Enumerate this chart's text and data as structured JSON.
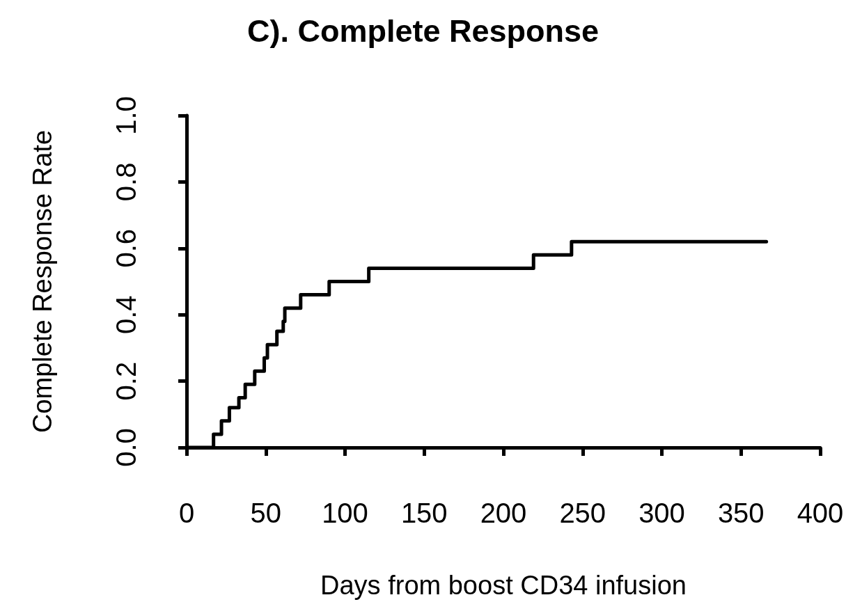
{
  "chart_data": {
    "type": "step",
    "title": "C). Complete Response",
    "xlabel": "Days from boost CD34 infusion",
    "ylabel": "Complete Response Rate",
    "x": [
      0,
      17,
      22,
      27,
      33,
      37,
      43,
      49,
      51,
      57,
      61,
      62,
      72,
      90,
      115,
      219,
      243,
      366
    ],
    "series": [
      {
        "color": "#000000",
        "values": [
          0,
          0.04,
          0.08,
          0.12,
          0.15,
          0.19,
          0.23,
          0.27,
          0.31,
          0.35,
          0.38,
          0.42,
          0.46,
          0.5,
          0.54,
          0.58,
          0.62,
          0.62
        ]
      }
    ],
    "xlim": [
      0,
      400
    ],
    "xticks": [
      0,
      50,
      100,
      150,
      200,
      250,
      300,
      350,
      400
    ],
    "ylim": [
      0,
      1
    ],
    "yticks": [
      {
        "value": 0,
        "label": "0.0"
      },
      {
        "value": 0.2,
        "label": "0.2"
      },
      {
        "value": 0.4,
        "label": "0.4"
      },
      {
        "value": 0.6,
        "label": "0.6"
      },
      {
        "value": 0.8,
        "label": "0.8"
      },
      {
        "value": 1,
        "label": "1.0"
      }
    ],
    "grid": false,
    "marker": "none",
    "line_style": "solid"
  }
}
